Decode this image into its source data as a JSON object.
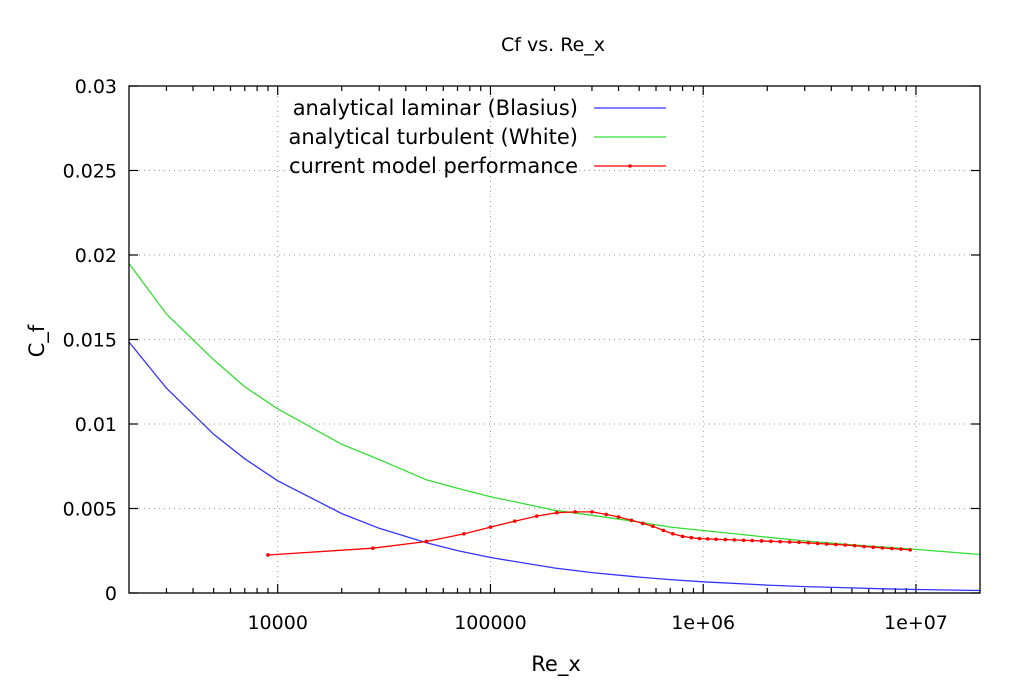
{
  "chart_data": {
    "type": "line",
    "title": "Cf vs. Re_x",
    "xlabel": "Re_x",
    "ylabel": "C_f",
    "xscale": "log",
    "xlim": [
      2000,
      20000000
    ],
    "ylim": [
      0,
      0.03
    ],
    "grid": true,
    "legend_position": "top-right",
    "x_major_ticks": [
      10000,
      100000,
      1000000,
      10000000
    ],
    "x_tick_labels": [
      "10000",
      "100000",
      "1e+06",
      "1e+07"
    ],
    "y_ticks": [
      0,
      0.005,
      0.01,
      0.015,
      0.02,
      0.025,
      0.03
    ],
    "y_tick_labels": [
      "0",
      "0.005",
      "0.01",
      "0.015",
      "0.02",
      "0.025",
      "0.03"
    ],
    "series": [
      {
        "name": "analytical laminar (Blasius)",
        "color": "#3333ff",
        "style": "line",
        "x": [
          2000,
          3000,
          5000,
          7000,
          10000,
          20000,
          30000,
          50000,
          70000,
          100000,
          200000,
          300000,
          500000,
          700000,
          1000000,
          2000000,
          3000000,
          5000000,
          7000000,
          10000000,
          20000000
        ],
        "y": [
          0.01485,
          0.01212,
          0.00939,
          0.00794,
          0.00664,
          0.0047,
          0.00383,
          0.00297,
          0.00251,
          0.0021,
          0.00148,
          0.00121,
          0.00094,
          0.00079,
          0.00066,
          0.00047,
          0.00038,
          0.0003,
          0.00025,
          0.00021,
          0.00015
        ]
      },
      {
        "name": "analytical turbulent (White)",
        "color": "#33dd33",
        "style": "line",
        "x": [
          2000,
          3000,
          5000,
          7000,
          10000,
          20000,
          30000,
          50000,
          70000,
          100000,
          200000,
          300000,
          500000,
          700000,
          1000000,
          2000000,
          3000000,
          5000000,
          7000000,
          10000000,
          20000000
        ],
        "y": [
          0.0195,
          0.0165,
          0.0138,
          0.0122,
          0.0109,
          0.0088,
          0.0079,
          0.0067,
          0.0062,
          0.0057,
          0.0049,
          0.0046,
          0.0042,
          0.0039,
          0.0037,
          0.0033,
          0.00308,
          0.00285,
          0.00272,
          0.00258,
          0.00228
        ]
      },
      {
        "name": "current model performance",
        "color": "#ff0000",
        "style": "linespoints",
        "x": [
          9000,
          28000,
          50000,
          75000,
          100000,
          130000,
          165000,
          205000,
          250000,
          300000,
          350000,
          400000,
          460000,
          520000,
          580000,
          650000,
          720000,
          800000,
          880000,
          960000,
          1050000,
          1150000,
          1270000,
          1400000,
          1550000,
          1700000,
          1880000,
          2080000,
          2300000,
          2550000,
          2820000,
          3120000,
          3450000,
          3800000,
          4200000,
          4650000,
          5150000,
          5700000,
          6300000,
          6950000,
          7700000,
          8500000,
          9400000
        ],
        "y": [
          0.00225,
          0.00265,
          0.00305,
          0.0035,
          0.0039,
          0.00425,
          0.00455,
          0.00475,
          0.0048,
          0.0048,
          0.00465,
          0.0045,
          0.0043,
          0.00412,
          0.00395,
          0.0037,
          0.0035,
          0.00335,
          0.00327,
          0.00322,
          0.0032,
          0.00318,
          0.00316,
          0.00314,
          0.00312,
          0.0031,
          0.00308,
          0.00306,
          0.00304,
          0.00302,
          0.003,
          0.00297,
          0.00293,
          0.0029,
          0.00287,
          0.00284,
          0.0028,
          0.00275,
          0.00271,
          0.00267,
          0.00263,
          0.0026,
          0.00255
        ]
      }
    ]
  }
}
